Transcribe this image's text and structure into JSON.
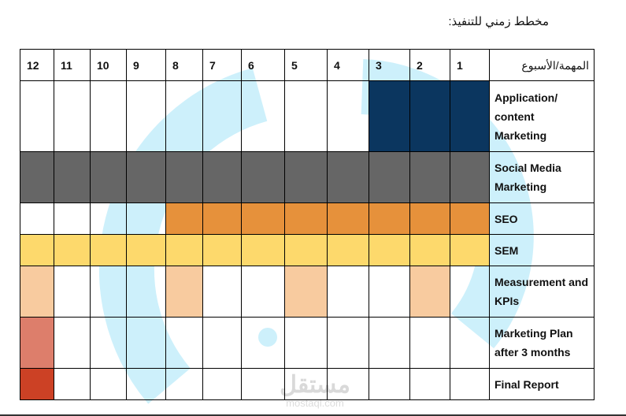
{
  "title": "مخطط زمني للتنفيذ:",
  "header_label": "المهمة/الأسبوع",
  "weeks": [
    "1",
    "2",
    "3",
    "4",
    "5",
    "6",
    "7",
    "8",
    "9",
    "10",
    "11",
    "12"
  ],
  "tasks": [
    {
      "name": "Application/ content Marketing",
      "weeks": [
        1,
        2,
        3
      ],
      "color": "#0b365f"
    },
    {
      "name": "Social Media Marketing",
      "weeks": [
        1,
        2,
        3,
        4,
        5,
        6,
        7,
        8,
        9,
        10,
        11,
        12
      ],
      "color": "#666666"
    },
    {
      "name": "SEO",
      "weeks": [
        1,
        2,
        3,
        4,
        5,
        6,
        7,
        8
      ],
      "color": "#e6913b"
    },
    {
      "name": "SEM",
      "weeks": [
        1,
        2,
        3,
        4,
        5,
        6,
        7,
        8,
        9,
        10,
        11,
        12
      ],
      "color": "#fdd96c"
    },
    {
      "name": "Measurement and KPIs",
      "weeks": [
        2,
        5,
        8,
        12
      ],
      "color": "#f8cb9f"
    },
    {
      "name": "Marketing Plan after 3 months",
      "weeks": [
        12
      ],
      "color": "#dd7e6b"
    },
    {
      "name": "Final Report",
      "weeks": [
        12
      ],
      "color": "#cc4125"
    }
  ],
  "watermark": {
    "text": "مستقل",
    "subtext": "mostaql.com",
    "color": "#c8eefa"
  }
}
